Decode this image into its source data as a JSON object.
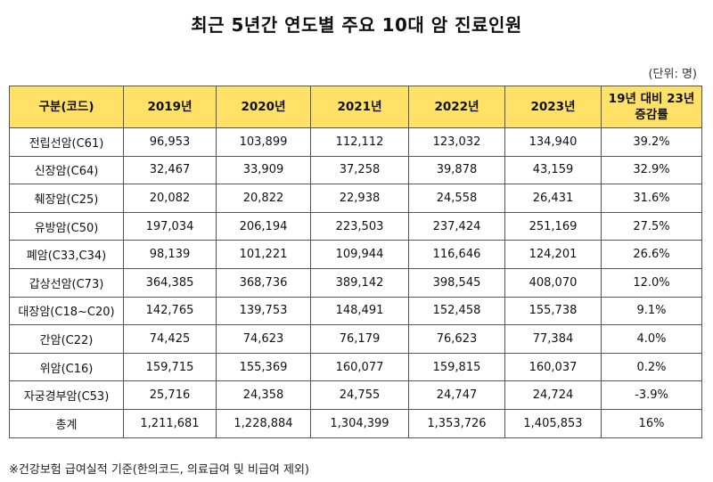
{
  "title": "최근 5년간 연도별 주요 10대 암 진료인원",
  "unit_label": "(단위: 명)",
  "table": {
    "headers": [
      "구분(코드)",
      "2019년",
      "2020년",
      "2021년",
      "2022년",
      "2023년",
      "19년 대비 23년 증감률"
    ],
    "rows": [
      [
        "전립선암(C61)",
        "96,953",
        "103,899",
        "112,112",
        "123,032",
        "134,940",
        "39.2%"
      ],
      [
        "신장암(C64)",
        "32,467",
        "33,909",
        "37,258",
        "39,878",
        "43,159",
        "32.9%"
      ],
      [
        "췌장암(C25)",
        "20,082",
        "20,822",
        "22,938",
        "24,558",
        "26,431",
        "31.6%"
      ],
      [
        "유방암(C50)",
        "197,034",
        "206,194",
        "223,503",
        "237,424",
        "251,169",
        "27.5%"
      ],
      [
        "폐암(C33,C34)",
        "98,139",
        "101,221",
        "109,944",
        "116,646",
        "124,201",
        "26.6%"
      ],
      [
        "갑상선암(C73)",
        "364,385",
        "368,736",
        "389,142",
        "398,545",
        "408,070",
        "12.0%"
      ],
      [
        "대장암(C18~C20)",
        "142,765",
        "139,753",
        "148,491",
        "152,458",
        "155,738",
        "9.1%"
      ],
      [
        "간암(C22)",
        "74,425",
        "74,623",
        "76,179",
        "76,623",
        "77,384",
        "4.0%"
      ],
      [
        "위암(C16)",
        "159,715",
        "155,369",
        "160,077",
        "159,815",
        "160,037",
        "0.2%"
      ],
      [
        "자궁경부암(C53)",
        "25,716",
        "24,358",
        "24,755",
        "24,747",
        "24,724",
        "-3.9%"
      ],
      [
        "총계",
        "1,211,681",
        "1,228,884",
        "1,304,399",
        "1,353,726",
        "1,405,853",
        "16%"
      ]
    ]
  },
  "footnote": "※건강보험 급여실적 기준(한의코드, 의료급여 및 비급여 제외)",
  "colors": {
    "header_bg": "#ffe168",
    "border": "#555555"
  }
}
